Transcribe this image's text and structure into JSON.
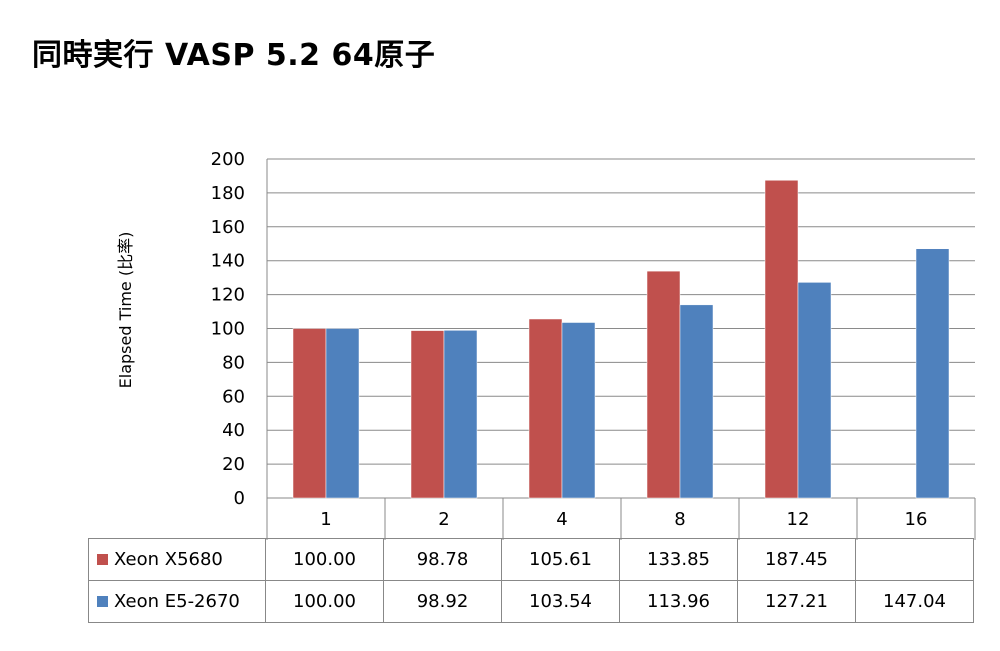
{
  "title": "同時実行 VASP 5.2 64原子",
  "chart_data": {
    "type": "bar",
    "ylabel": "Elapsed Time (比率)",
    "xlabel": "",
    "categories": [
      "1",
      "2",
      "4",
      "8",
      "12",
      "16"
    ],
    "ylim": [
      0,
      200
    ],
    "yticks": [
      0,
      20,
      40,
      60,
      80,
      100,
      120,
      140,
      160,
      180,
      200
    ],
    "grid": true,
    "series": [
      {
        "name": "Xeon X5680",
        "color": "#c0504d",
        "values": [
          100.0,
          98.78,
          105.61,
          133.85,
          187.45,
          null
        ],
        "labels": [
          "100.00",
          "98.78",
          "105.61",
          "133.85",
          "187.45",
          ""
        ]
      },
      {
        "name": "Xeon E5-2670",
        "color": "#4f81bd",
        "values": [
          100.0,
          98.92,
          103.54,
          113.96,
          127.21,
          147.04
        ],
        "labels": [
          "100.00",
          "98.92",
          "103.54",
          "113.96",
          "127.21",
          "147.04"
        ]
      }
    ]
  }
}
